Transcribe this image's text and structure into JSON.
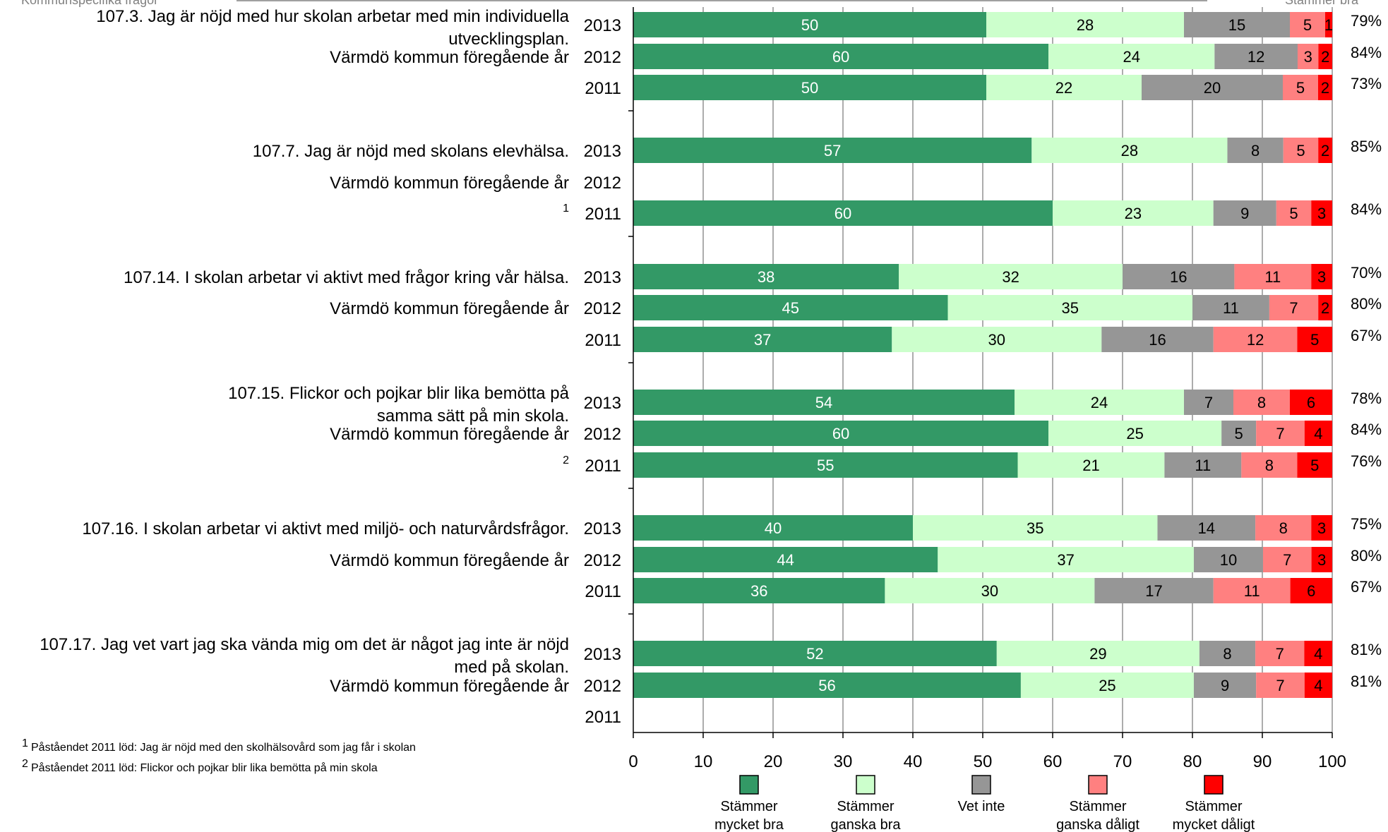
{
  "header": {
    "left": "Kommunspecifika frågor",
    "right": "Stämmer bra"
  },
  "footnotes": [
    {
      "mark": "1",
      "text": "Påståendet 2011 löd: Jag är nöjd med den skolhälsovård som jag får i skolan"
    },
    {
      "mark": "2",
      "text": "Påståendet 2011 löd: Flickor och pojkar blir lika bemötta på min skola"
    }
  ],
  "chart_data": {
    "type": "bar",
    "orientation": "horizontal",
    "stacked": true,
    "xlim": [
      0,
      100
    ],
    "xticks": [
      "0",
      "10",
      "20",
      "30",
      "40",
      "50",
      "60",
      "70",
      "80",
      "90",
      "100"
    ],
    "grid": true,
    "legend_position": "bottom",
    "series": [
      {
        "name": "Stämmer mycket bra",
        "color": "#339966",
        "text_color": "#ffffff"
      },
      {
        "name": "Stämmer ganska bra",
        "color": "#ccffcc",
        "text_color": "#000000"
      },
      {
        "name": "Vet inte",
        "color": "#969696",
        "text_color": "#000000"
      },
      {
        "name": "Stämmer ganska dåligt",
        "color": "#ff8080",
        "text_color": "#000000"
      },
      {
        "name": "Stämmer mycket dåligt",
        "color": "#ff0000",
        "text_color": "#000000"
      }
    ],
    "groups": [
      {
        "question": "107.3.  Jag är nöjd med hur skolan arbetar med min individuella utvecklingsplan.",
        "rows": [
          {
            "year": "2013",
            "label": "",
            "values": [
              50,
              28,
              15,
              5,
              1
            ],
            "total": "79%"
          },
          {
            "year": "2012",
            "label": "Värmdö kommun föregående år",
            "values": [
              60,
              24,
              12,
              3,
              2
            ],
            "total": "84%"
          },
          {
            "year": "2011",
            "label": "",
            "values": [
              50,
              22,
              20,
              5,
              2
            ],
            "total": "73%"
          }
        ]
      },
      {
        "question": "107.7.  Jag är nöjd med skolans elevhälsa.",
        "rows": [
          {
            "year": "2013",
            "label": "",
            "values": [
              57,
              28,
              8,
              5,
              2
            ],
            "total": "85%"
          },
          {
            "year": "2012",
            "label": "Värmdö kommun föregående år",
            "values": null,
            "total": ""
          },
          {
            "year": "2011",
            "label": "",
            "footnote": "1",
            "values": [
              60,
              23,
              9,
              5,
              3
            ],
            "total": "84%"
          }
        ]
      },
      {
        "question": "107.14.  I skolan arbetar vi aktivt med frågor kring vår hälsa.",
        "rows": [
          {
            "year": "2013",
            "label": "",
            "values": [
              38,
              32,
              16,
              11,
              3
            ],
            "total": "70%"
          },
          {
            "year": "2012",
            "label": "Värmdö kommun föregående år",
            "values": [
              45,
              35,
              11,
              7,
              2
            ],
            "total": "80%"
          },
          {
            "year": "2011",
            "label": "",
            "values": [
              37,
              30,
              16,
              12,
              5
            ],
            "total": "67%"
          }
        ]
      },
      {
        "question": "107.15.  Flickor och pojkar blir lika bemötta på samma sätt på min skola.",
        "rows": [
          {
            "year": "2013",
            "label": "",
            "values": [
              54,
              24,
              7,
              8,
              6
            ],
            "total": "78%"
          },
          {
            "year": "2012",
            "label": "Värmdö kommun föregående år",
            "values": [
              60,
              25,
              5,
              7,
              4
            ],
            "total": "84%"
          },
          {
            "year": "2011",
            "label": "",
            "footnote": "2",
            "values": [
              55,
              21,
              11,
              8,
              5
            ],
            "total": "76%"
          }
        ]
      },
      {
        "question": "107.16.  I skolan arbetar vi aktivt med miljö- och naturvårdsfrågor.",
        "rows": [
          {
            "year": "2013",
            "label": "",
            "values": [
              40,
              35,
              14,
              8,
              3
            ],
            "total": "75%"
          },
          {
            "year": "2012",
            "label": "Värmdö kommun föregående år",
            "values": [
              44,
              37,
              10,
              7,
              3
            ],
            "total": "80%"
          },
          {
            "year": "2011",
            "label": "",
            "values": [
              36,
              30,
              17,
              11,
              6
            ],
            "total": "67%"
          }
        ]
      },
      {
        "question": "107.17.  Jag vet vart jag ska vända mig om det är något jag inte är nöjd med på skolan.",
        "rows": [
          {
            "year": "2013",
            "label": "",
            "values": [
              52,
              29,
              8,
              7,
              4
            ],
            "total": "81%"
          },
          {
            "year": "2012",
            "label": "Värmdö kommun föregående år",
            "values": [
              56,
              25,
              9,
              7,
              4
            ],
            "total": "81%"
          },
          {
            "year": "2011",
            "label": "",
            "values": null,
            "total": ""
          }
        ]
      }
    ]
  }
}
